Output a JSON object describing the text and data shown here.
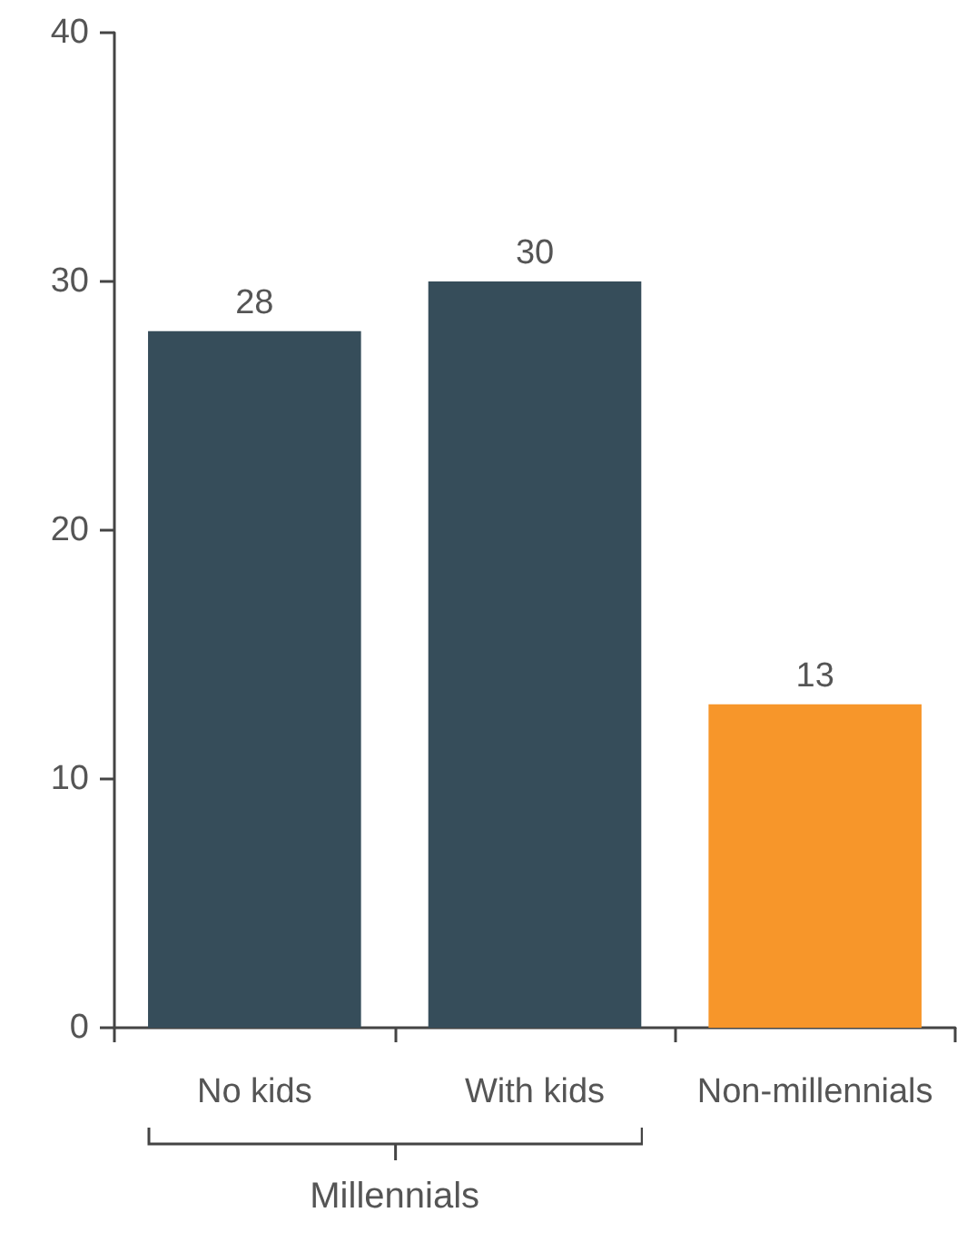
{
  "chart_data": {
    "type": "bar",
    "categories": [
      "No kids",
      "With kids",
      "Non-millennials"
    ],
    "values": [
      28,
      30,
      13
    ],
    "colors": [
      "#364d5a",
      "#364d5a",
      "#f7962a"
    ],
    "ylim": [
      0,
      40
    ],
    "yticks": [
      0,
      10,
      20,
      30,
      40
    ],
    "data_labels": true,
    "annotations": [
      "Millennials"
    ]
  }
}
